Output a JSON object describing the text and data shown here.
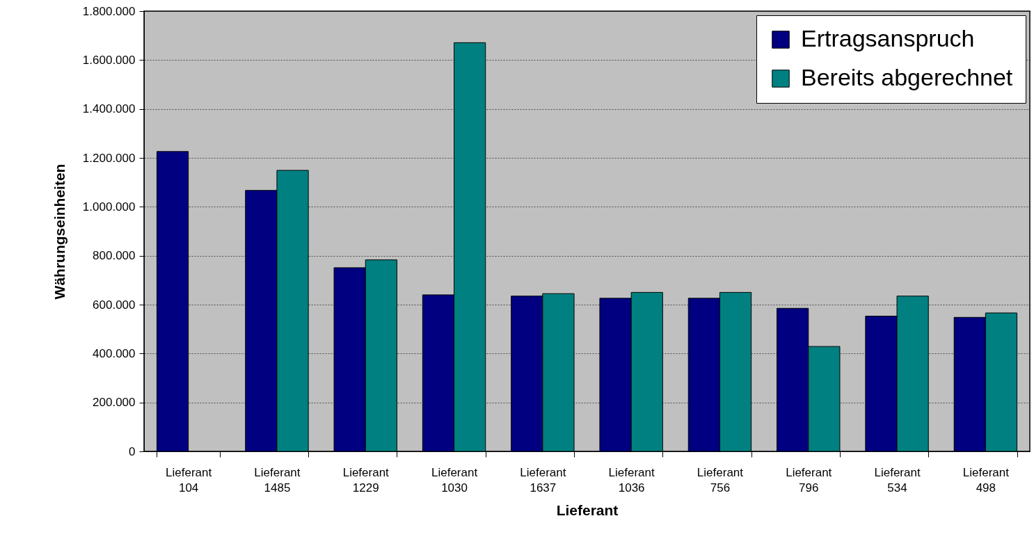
{
  "chart_data": {
    "type": "bar",
    "xlabel": "Lieferant",
    "ylabel": "Währungseinheiten",
    "categories": [
      "Lieferant 104",
      "Lieferant 1485",
      "Lieferant 1229",
      "Lieferant 1030",
      "Lieferant 1637",
      "Lieferant 1036",
      "Lieferant 756",
      "Lieferant 796",
      "Lieferant 534",
      "Lieferant 498"
    ],
    "series": [
      {
        "name": "Ertragsanspruch",
        "color": "#000080",
        "values": [
          1226000,
          1067000,
          751000,
          640000,
          635000,
          626000,
          626000,
          585000,
          553000,
          548000
        ]
      },
      {
        "name": "Bereits abgerechnet",
        "color": "#008080",
        "values": [
          null,
          1149000,
          783000,
          1671000,
          645000,
          650000,
          650000,
          429000,
          635000,
          566000
        ]
      }
    ],
    "ylim": [
      0,
      1800000
    ],
    "yticks": [
      {
        "value": 0,
        "label": "0"
      },
      {
        "value": 200000,
        "label": "200.000"
      },
      {
        "value": 400000,
        "label": "400.000"
      },
      {
        "value": 600000,
        "label": "600.000"
      },
      {
        "value": 800000,
        "label": "800.000"
      },
      {
        "value": 1000000,
        "label": "1.000.000"
      },
      {
        "value": 1200000,
        "label": "1.200.000"
      },
      {
        "value": 1400000,
        "label": "1.400.000"
      },
      {
        "value": 1600000,
        "label": "1.600.000"
      },
      {
        "value": 1800000,
        "label": "1.800.000"
      }
    ],
    "grid": "y",
    "legend": "top right"
  }
}
